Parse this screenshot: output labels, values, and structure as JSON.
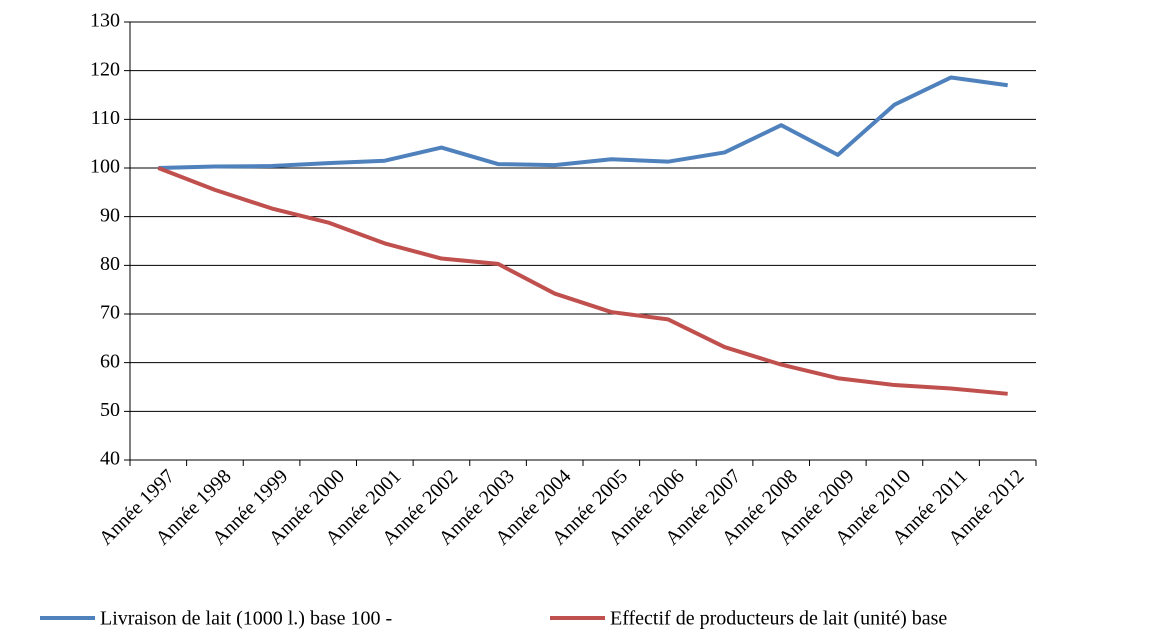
{
  "chart_data": {
    "type": "line",
    "categories": [
      "Année 1997",
      "Année 1998",
      "Année 1999",
      "Année 2000",
      "Année 2001",
      "Année 2002",
      "Année 2003",
      "Année 2004",
      "Année 2005",
      "Année 2006",
      "Année 2007",
      "Année 2008",
      "Année 2009",
      "Année 2010",
      "Année 2011",
      "Année 2012"
    ],
    "series": [
      {
        "name": "Livraison de lait (1000 l.) base 100 -",
        "color": "#4f81bd",
        "values": [
          100,
          100.3,
          100.4,
          101,
          101.5,
          104.2,
          100.8,
          100.6,
          101.8,
          101.3,
          103.2,
          108.8,
          102.7,
          113,
          118.6,
          117
        ]
      },
      {
        "name": "Effectif de producteurs de lait (unité) base",
        "color": "#c0504d",
        "values": [
          100,
          95.5,
          91.7,
          88.8,
          84.5,
          81.4,
          80.3,
          74.2,
          70.4,
          68.9,
          63.2,
          59.6,
          56.8,
          55.4,
          54.7,
          53.6
        ]
      }
    ],
    "ylim": [
      40,
      130
    ],
    "yticks": [
      40,
      50,
      60,
      70,
      80,
      90,
      100,
      110,
      120,
      130
    ],
    "grid": true,
    "legend": "bottom"
  }
}
